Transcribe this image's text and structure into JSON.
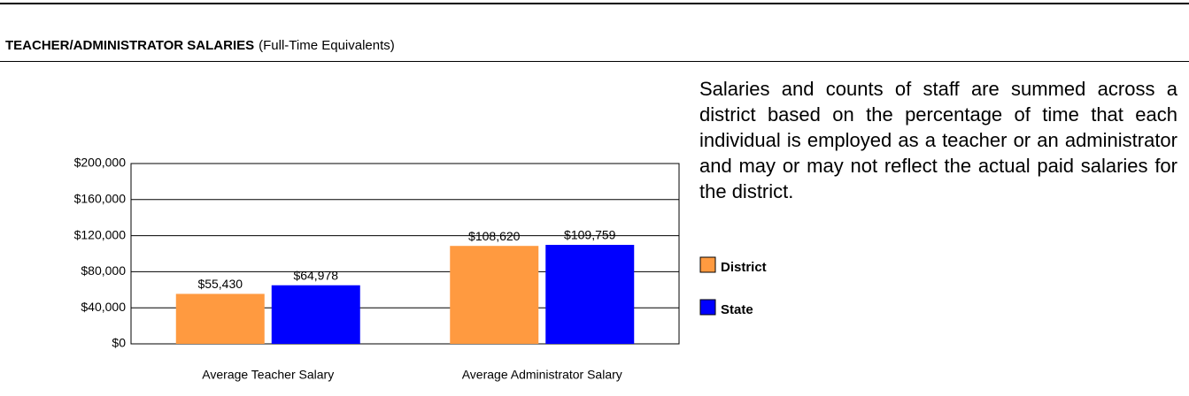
{
  "chart_data": {
    "type": "bar",
    "title": "TEACHER/ADMINISTRATOR SALARIES",
    "subtitle": "(Full-Time Equivalents)",
    "description": "Salaries and counts of staff are summed across a district based on the percentage of time that each individual is employed as a teacher or an administrator and may or may not reflect the actual paid salaries for the district.",
    "categories": [
      "Average Teacher Salary",
      "Average Administrator Salary"
    ],
    "series": [
      {
        "name": "District",
        "color": "#ff9a40",
        "values": [
          55430,
          108620
        ],
        "value_labels": [
          "$55,430",
          "$108,620"
        ]
      },
      {
        "name": "State",
        "color": "#0000ff",
        "values": [
          64978,
          109759
        ],
        "value_labels": [
          "$64,978",
          "$109,759"
        ]
      }
    ],
    "ylim": [
      0,
      200000
    ],
    "yticks": [
      {
        "value": 0,
        "label": "$0"
      },
      {
        "value": 40000,
        "label": "$40,000"
      },
      {
        "value": 80000,
        "label": "$80,000"
      },
      {
        "value": 120000,
        "label": "$120,000"
      },
      {
        "value": 160000,
        "label": "$160,000"
      },
      {
        "value": 200000,
        "label": "$200,000"
      }
    ],
    "grid": true
  }
}
